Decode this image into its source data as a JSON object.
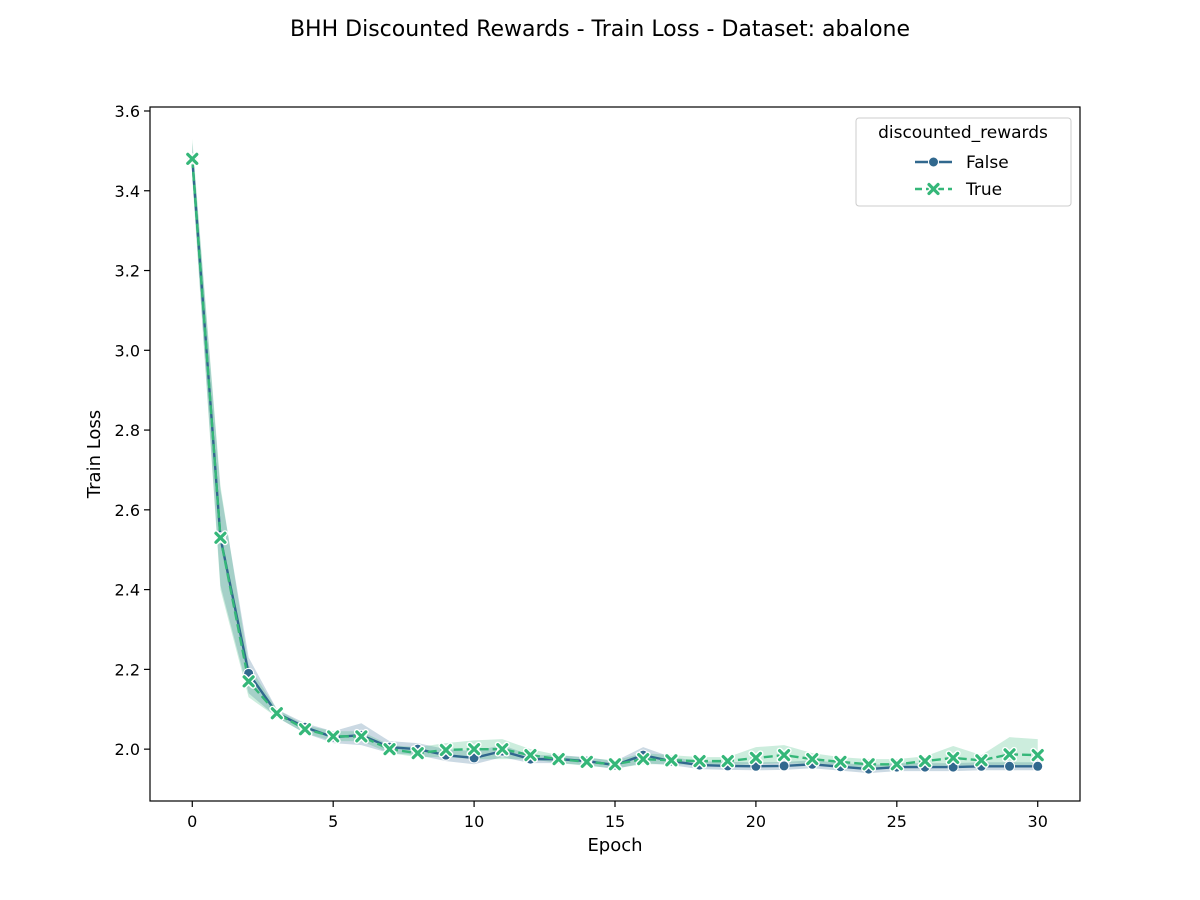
{
  "chart_data": {
    "type": "line",
    "title": "BHH Discounted Rewards - Train Loss - Dataset: abalone",
    "xlabel": "Epoch",
    "ylabel": "Train Loss",
    "xlim": [
      -1.5,
      31.5
    ],
    "ylim": [
      1.87,
      3.61
    ],
    "xticks": [
      0,
      5,
      10,
      15,
      20,
      25,
      30
    ],
    "yticks": [
      2.0,
      2.2,
      2.4,
      2.6,
      2.8,
      3.0,
      3.2,
      3.4,
      3.6
    ],
    "grid": false,
    "legend": {
      "title": "discounted_rewards",
      "position": "top-right"
    },
    "x": [
      0,
      1,
      2,
      3,
      4,
      5,
      6,
      7,
      8,
      9,
      10,
      11,
      12,
      13,
      14,
      15,
      16,
      17,
      18,
      19,
      20,
      21,
      22,
      23,
      24,
      25,
      26,
      27,
      28,
      29,
      30
    ],
    "series": [
      {
        "name": "False",
        "color": "#31688e",
        "marker": "circle",
        "dash": "solid",
        "values": [
          3.48,
          2.53,
          2.19,
          2.09,
          2.055,
          2.03,
          2.035,
          2.005,
          2.0,
          1.985,
          1.978,
          1.995,
          1.975,
          1.975,
          1.97,
          1.96,
          1.985,
          1.97,
          1.96,
          1.958,
          1.957,
          1.958,
          1.962,
          1.956,
          1.95,
          1.955,
          1.955,
          1.955,
          1.957,
          1.957,
          1.957
        ],
        "ci_low": [
          3.44,
          2.41,
          2.14,
          2.08,
          2.04,
          2.015,
          2.01,
          1.99,
          1.985,
          1.97,
          1.962,
          1.98,
          1.965,
          1.965,
          1.96,
          1.95,
          1.965,
          1.96,
          1.95,
          1.948,
          1.947,
          1.948,
          1.952,
          1.946,
          1.94,
          1.945,
          1.945,
          1.945,
          1.947,
          1.947,
          1.947
        ],
        "ci_high": [
          3.52,
          2.65,
          2.23,
          2.1,
          2.065,
          2.045,
          2.065,
          2.02,
          2.015,
          2.0,
          1.995,
          2.01,
          1.985,
          1.985,
          1.98,
          1.97,
          2.005,
          1.98,
          1.97,
          1.968,
          1.967,
          1.968,
          1.972,
          1.966,
          1.96,
          1.965,
          1.965,
          1.965,
          1.967,
          1.967,
          1.967
        ]
      },
      {
        "name": "True",
        "color": "#35b779",
        "marker": "x",
        "dash": "dashed",
        "values": [
          3.48,
          2.53,
          2.17,
          2.09,
          2.05,
          2.032,
          2.032,
          2.0,
          1.99,
          1.998,
          2.0,
          2.0,
          1.985,
          1.975,
          1.968,
          1.962,
          1.975,
          1.972,
          1.97,
          1.97,
          1.978,
          1.985,
          1.975,
          1.968,
          1.962,
          1.962,
          1.97,
          1.978,
          1.972,
          1.987,
          1.985
        ],
        "ci_low": [
          3.43,
          2.4,
          2.13,
          2.08,
          2.04,
          2.02,
          2.02,
          1.99,
          1.98,
          1.98,
          1.975,
          1.975,
          1.975,
          1.965,
          1.958,
          1.952,
          1.962,
          1.962,
          1.96,
          1.96,
          1.962,
          1.965,
          1.962,
          1.958,
          1.952,
          1.952,
          1.958,
          1.958,
          1.96,
          1.96,
          1.96
        ],
        "ci_high": [
          3.53,
          2.66,
          2.21,
          2.1,
          2.06,
          2.045,
          2.045,
          2.01,
          2.005,
          2.015,
          2.022,
          2.025,
          2.0,
          1.985,
          1.978,
          1.972,
          1.99,
          1.985,
          1.98,
          1.98,
          2.005,
          2.01,
          1.99,
          1.98,
          1.975,
          1.975,
          1.982,
          2.008,
          1.985,
          2.03,
          2.025
        ]
      }
    ]
  }
}
